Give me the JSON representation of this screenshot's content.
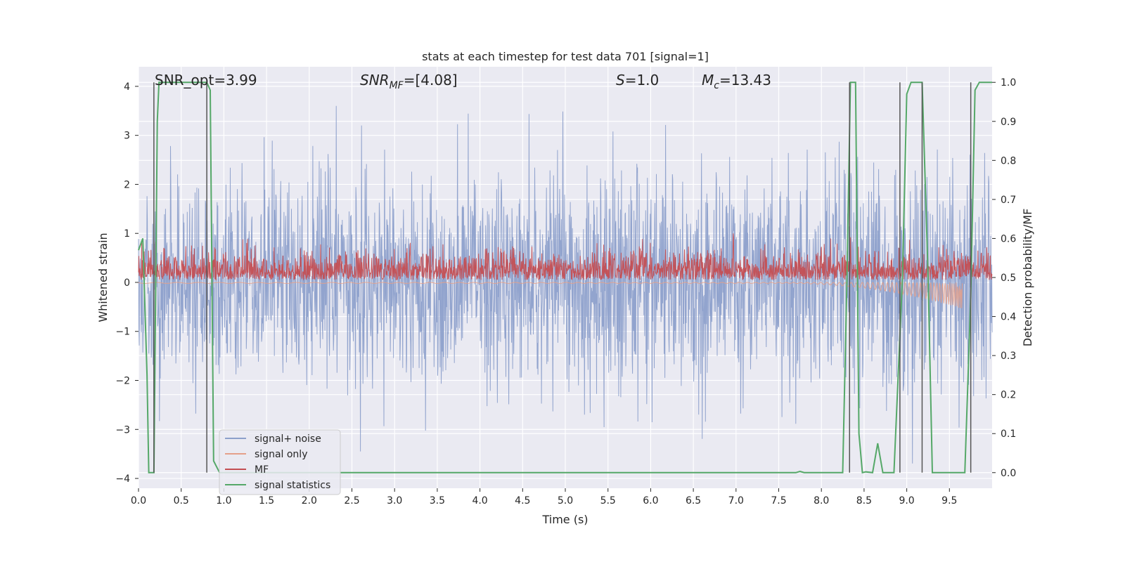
{
  "chart_data": {
    "type": "line",
    "title": "stats at each timestep for test data 701 [signal=1]",
    "xlabel": "Time (s)",
    "ylabel": "Whitened strain",
    "ylabel_right": "Detection probability/MF",
    "xlim": [
      0.0,
      10.0
    ],
    "ylim": [
      -4.2,
      4.4
    ],
    "ylim_right": [
      -0.04,
      1.04
    ],
    "xticks": [
      "0.0",
      "0.5",
      "1.0",
      "1.5",
      "2.0",
      "2.5",
      "3.0",
      "3.5",
      "4.0",
      "4.5",
      "5.0",
      "5.5",
      "6.0",
      "6.5",
      "7.0",
      "7.5",
      "8.0",
      "8.5",
      "9.0",
      "9.5"
    ],
    "yticks": [
      "4",
      "3",
      "2",
      "1",
      "0",
      "−1",
      "−2",
      "−3",
      "−4"
    ],
    "yticks_right": [
      "1.0",
      "0.9",
      "0.8",
      "0.7",
      "0.6",
      "0.5",
      "0.4",
      "0.3",
      "0.2",
      "0.1",
      "0.0"
    ],
    "grid": true,
    "legend_placement": "lower-left",
    "annotations": {
      "snr_opt": "SNR_opt=3.99",
      "snr_mf_name": "SNR",
      "snr_mf_sub": "MF",
      "snr_mf_value": "=[4.08]",
      "s_name": "S",
      "s_value": "=1.0",
      "mc_name": "M",
      "mc_sub": "c",
      "mc_value": "=13.43"
    },
    "colors": {
      "background": "#eaeaf2",
      "grid": "#ffffff",
      "noise": "#8da0cb",
      "signal": "#e5a08a",
      "mf": "#c44e52",
      "stat": "#55a868",
      "vline": "#555555"
    },
    "series": [
      {
        "name": "signal+ noise",
        "style": "dense-noise",
        "x_range": [
          0.0,
          10.0
        ],
        "approx_min": -3.7,
        "approx_max": 3.6
      },
      {
        "name": "signal only",
        "style": "chirp",
        "x_range": [
          0.0,
          9.65
        ],
        "approx_max": 0.05,
        "approx_min": -0.6
      },
      {
        "name": "MF",
        "style": "dense-noise",
        "x_range": [
          0.0,
          10.0
        ],
        "approx_min": 0.0,
        "approx_max": 1.0
      },
      {
        "name": "signal statistics",
        "axis": "right",
        "x": [
          0.0,
          0.05,
          0.1,
          0.12,
          0.18,
          0.22,
          0.24,
          0.26,
          0.8,
          0.84,
          0.88,
          0.95,
          1.0,
          1.5,
          2.0,
          3.0,
          4.0,
          5.0,
          6.0,
          7.0,
          7.7,
          7.75,
          7.8,
          8.25,
          8.3,
          8.34,
          8.4,
          8.44,
          8.48,
          8.52,
          8.6,
          8.66,
          8.72,
          8.85,
          8.95,
          9.0,
          9.05,
          9.18,
          9.25,
          9.3,
          9.35,
          9.5,
          9.6,
          9.68,
          9.75,
          9.8,
          9.85,
          9.9,
          10.0
        ],
        "values": [
          0.57,
          0.6,
          0.25,
          0.0,
          0.0,
          0.9,
          1.0,
          1.0,
          1.0,
          0.98,
          0.03,
          0.0,
          0.0,
          0.0,
          0.0,
          0.0,
          0.0,
          0.0,
          0.0,
          0.0,
          0.0,
          0.003,
          0.0,
          0.0,
          0.5,
          1.0,
          1.0,
          0.1,
          0.0,
          0.002,
          0.0,
          0.075,
          0.0,
          0.0,
          0.5,
          0.97,
          1.0,
          1.0,
          0.5,
          0.0,
          0.0,
          0.0,
          0.0,
          0.0,
          0.45,
          0.98,
          1.0,
          1.0,
          1.0
        ]
      }
    ],
    "vlines": [
      0.18,
      0.8,
      8.33,
      8.92,
      9.18,
      9.75
    ]
  }
}
